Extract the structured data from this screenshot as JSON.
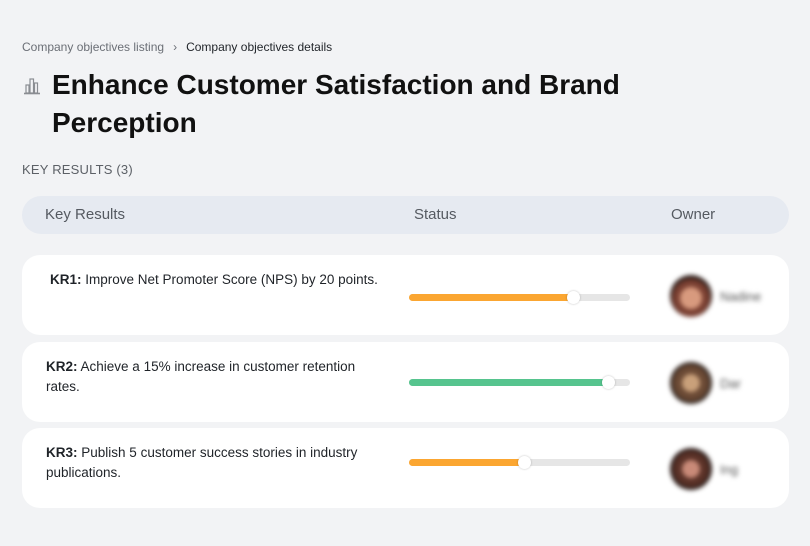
{
  "breadcrumb": {
    "items": [
      "Company objectives listing",
      "Company objectives details"
    ],
    "separator": "›"
  },
  "page": {
    "title": "Enhance Customer Satisfaction and Brand Perception",
    "icon": "building-icon"
  },
  "key_results_section": {
    "label": "KEY RESULTS (3)",
    "columns": [
      "Key Results",
      "Status",
      "Owner"
    ],
    "rows": [
      {
        "id": "KR1:",
        "text": "Improve Net Promoter Score (NPS) by 20 points.",
        "progress_pct": 74,
        "progress_color": "#fba631",
        "owner": "Nadine",
        "avatar_color": "#7a4032"
      },
      {
        "id": "KR2:",
        "text": "Achieve a 15% increase in customer retention rates.",
        "progress_pct": 90,
        "progress_color": "#56c48e",
        "owner": "Dar",
        "avatar_color": "#6b4a35"
      },
      {
        "id": "KR3:",
        "text": "Publish 5 customer success stories in industry publications.",
        "progress_pct": 52,
        "progress_color": "#fba631",
        "owner": "Ing",
        "avatar_color": "#5a3228"
      }
    ]
  }
}
